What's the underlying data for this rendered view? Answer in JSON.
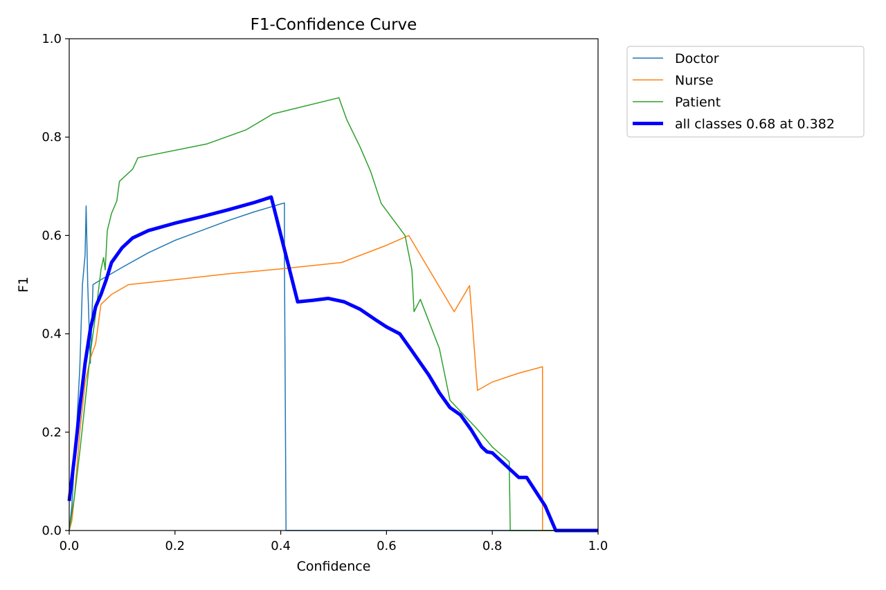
{
  "chart_data": {
    "type": "line",
    "title": "F1-Confidence Curve",
    "xlabel": "Confidence",
    "ylabel": "F1",
    "xlim": [
      0.0,
      1.0
    ],
    "ylim": [
      0.0,
      1.0
    ],
    "grid": false,
    "legend_placement": "outside-top-right",
    "x_ticks": [
      0.0,
      0.2,
      0.4,
      0.6,
      0.8,
      1.0
    ],
    "x_tick_labels": [
      "0.0",
      "0.2",
      "0.4",
      "0.6",
      "0.8",
      "1.0"
    ],
    "y_ticks": [
      0.0,
      0.2,
      0.4,
      0.6,
      0.8,
      1.0
    ],
    "y_tick_labels": [
      "0.0",
      "0.2",
      "0.4",
      "0.6",
      "0.8",
      "1.0"
    ],
    "series": [
      {
        "name": "Doctor",
        "color": "#1f77b4",
        "width": 1.5,
        "points": [
          [
            0.0,
            0.0
          ],
          [
            0.005,
            0.05
          ],
          [
            0.01,
            0.14
          ],
          [
            0.015,
            0.23
          ],
          [
            0.02,
            0.33
          ],
          [
            0.025,
            0.5
          ],
          [
            0.03,
            0.56
          ],
          [
            0.032,
            0.66
          ],
          [
            0.035,
            0.5
          ],
          [
            0.04,
            0.34
          ],
          [
            0.045,
            0.5
          ],
          [
            0.06,
            0.51
          ],
          [
            0.1,
            0.535
          ],
          [
            0.15,
            0.565
          ],
          [
            0.2,
            0.59
          ],
          [
            0.25,
            0.61
          ],
          [
            0.3,
            0.63
          ],
          [
            0.35,
            0.648
          ],
          [
            0.4,
            0.664
          ],
          [
            0.407,
            0.666
          ],
          [
            0.407,
            0.55
          ],
          [
            0.41,
            0.0
          ],
          [
            1.0,
            0.0
          ]
        ]
      },
      {
        "name": "Nurse",
        "color": "#ff7f0e",
        "width": 1.5,
        "points": [
          [
            0.0,
            0.0
          ],
          [
            0.005,
            0.02
          ],
          [
            0.01,
            0.07
          ],
          [
            0.02,
            0.2
          ],
          [
            0.03,
            0.3
          ],
          [
            0.04,
            0.35
          ],
          [
            0.05,
            0.38
          ],
          [
            0.06,
            0.46
          ],
          [
            0.08,
            0.48
          ],
          [
            0.112,
            0.5
          ],
          [
            0.2,
            0.51
          ],
          [
            0.3,
            0.522
          ],
          [
            0.4,
            0.532
          ],
          [
            0.515,
            0.545
          ],
          [
            0.6,
            0.58
          ],
          [
            0.642,
            0.6
          ],
          [
            0.728,
            0.445
          ],
          [
            0.757,
            0.498
          ],
          [
            0.772,
            0.285
          ],
          [
            0.8,
            0.302
          ],
          [
            0.85,
            0.32
          ],
          [
            0.895,
            0.333
          ],
          [
            0.895,
            0.0
          ],
          [
            1.0,
            0.0
          ]
        ]
      },
      {
        "name": "Patient",
        "color": "#2ca02c",
        "width": 1.5,
        "points": [
          [
            0.0,
            0.0
          ],
          [
            0.01,
            0.07
          ],
          [
            0.02,
            0.16
          ],
          [
            0.03,
            0.26
          ],
          [
            0.04,
            0.36
          ],
          [
            0.05,
            0.44
          ],
          [
            0.06,
            0.53
          ],
          [
            0.065,
            0.555
          ],
          [
            0.068,
            0.53
          ],
          [
            0.072,
            0.61
          ],
          [
            0.08,
            0.645
          ],
          [
            0.09,
            0.67
          ],
          [
            0.095,
            0.71
          ],
          [
            0.12,
            0.735
          ],
          [
            0.13,
            0.758
          ],
          [
            0.26,
            0.786
          ],
          [
            0.335,
            0.815
          ],
          [
            0.385,
            0.847
          ],
          [
            0.51,
            0.88
          ],
          [
            0.525,
            0.835
          ],
          [
            0.55,
            0.78
          ],
          [
            0.57,
            0.73
          ],
          [
            0.59,
            0.665
          ],
          [
            0.635,
            0.6
          ],
          [
            0.648,
            0.53
          ],
          [
            0.652,
            0.445
          ],
          [
            0.664,
            0.47
          ],
          [
            0.7,
            0.37
          ],
          [
            0.72,
            0.265
          ],
          [
            0.77,
            0.208
          ],
          [
            0.8,
            0.17
          ],
          [
            0.832,
            0.14
          ],
          [
            0.834,
            0.0
          ],
          [
            1.0,
            0.0
          ]
        ]
      },
      {
        "name": "all classes 0.68 at 0.382",
        "color": "#0000ff",
        "width": 5,
        "points": [
          [
            0.0,
            0.06
          ],
          [
            0.01,
            0.15
          ],
          [
            0.02,
            0.25
          ],
          [
            0.03,
            0.34
          ],
          [
            0.04,
            0.41
          ],
          [
            0.05,
            0.455
          ],
          [
            0.06,
            0.48
          ],
          [
            0.07,
            0.51
          ],
          [
            0.08,
            0.545
          ],
          [
            0.1,
            0.575
          ],
          [
            0.12,
            0.595
          ],
          [
            0.15,
            0.61
          ],
          [
            0.2,
            0.625
          ],
          [
            0.25,
            0.638
          ],
          [
            0.3,
            0.652
          ],
          [
            0.35,
            0.667
          ],
          [
            0.382,
            0.678
          ],
          [
            0.405,
            0.58
          ],
          [
            0.432,
            0.465
          ],
          [
            0.46,
            0.468
          ],
          [
            0.49,
            0.472
          ],
          [
            0.52,
            0.465
          ],
          [
            0.55,
            0.45
          ],
          [
            0.58,
            0.428
          ],
          [
            0.6,
            0.414
          ],
          [
            0.625,
            0.4
          ],
          [
            0.645,
            0.37
          ],
          [
            0.68,
            0.316
          ],
          [
            0.7,
            0.28
          ],
          [
            0.72,
            0.25
          ],
          [
            0.74,
            0.235
          ],
          [
            0.76,
            0.205
          ],
          [
            0.78,
            0.17
          ],
          [
            0.79,
            0.16
          ],
          [
            0.8,
            0.158
          ],
          [
            0.81,
            0.148
          ],
          [
            0.85,
            0.108
          ],
          [
            0.865,
            0.108
          ],
          [
            0.9,
            0.05
          ],
          [
            0.92,
            0.0
          ],
          [
            1.0,
            0.0
          ]
        ]
      }
    ]
  }
}
